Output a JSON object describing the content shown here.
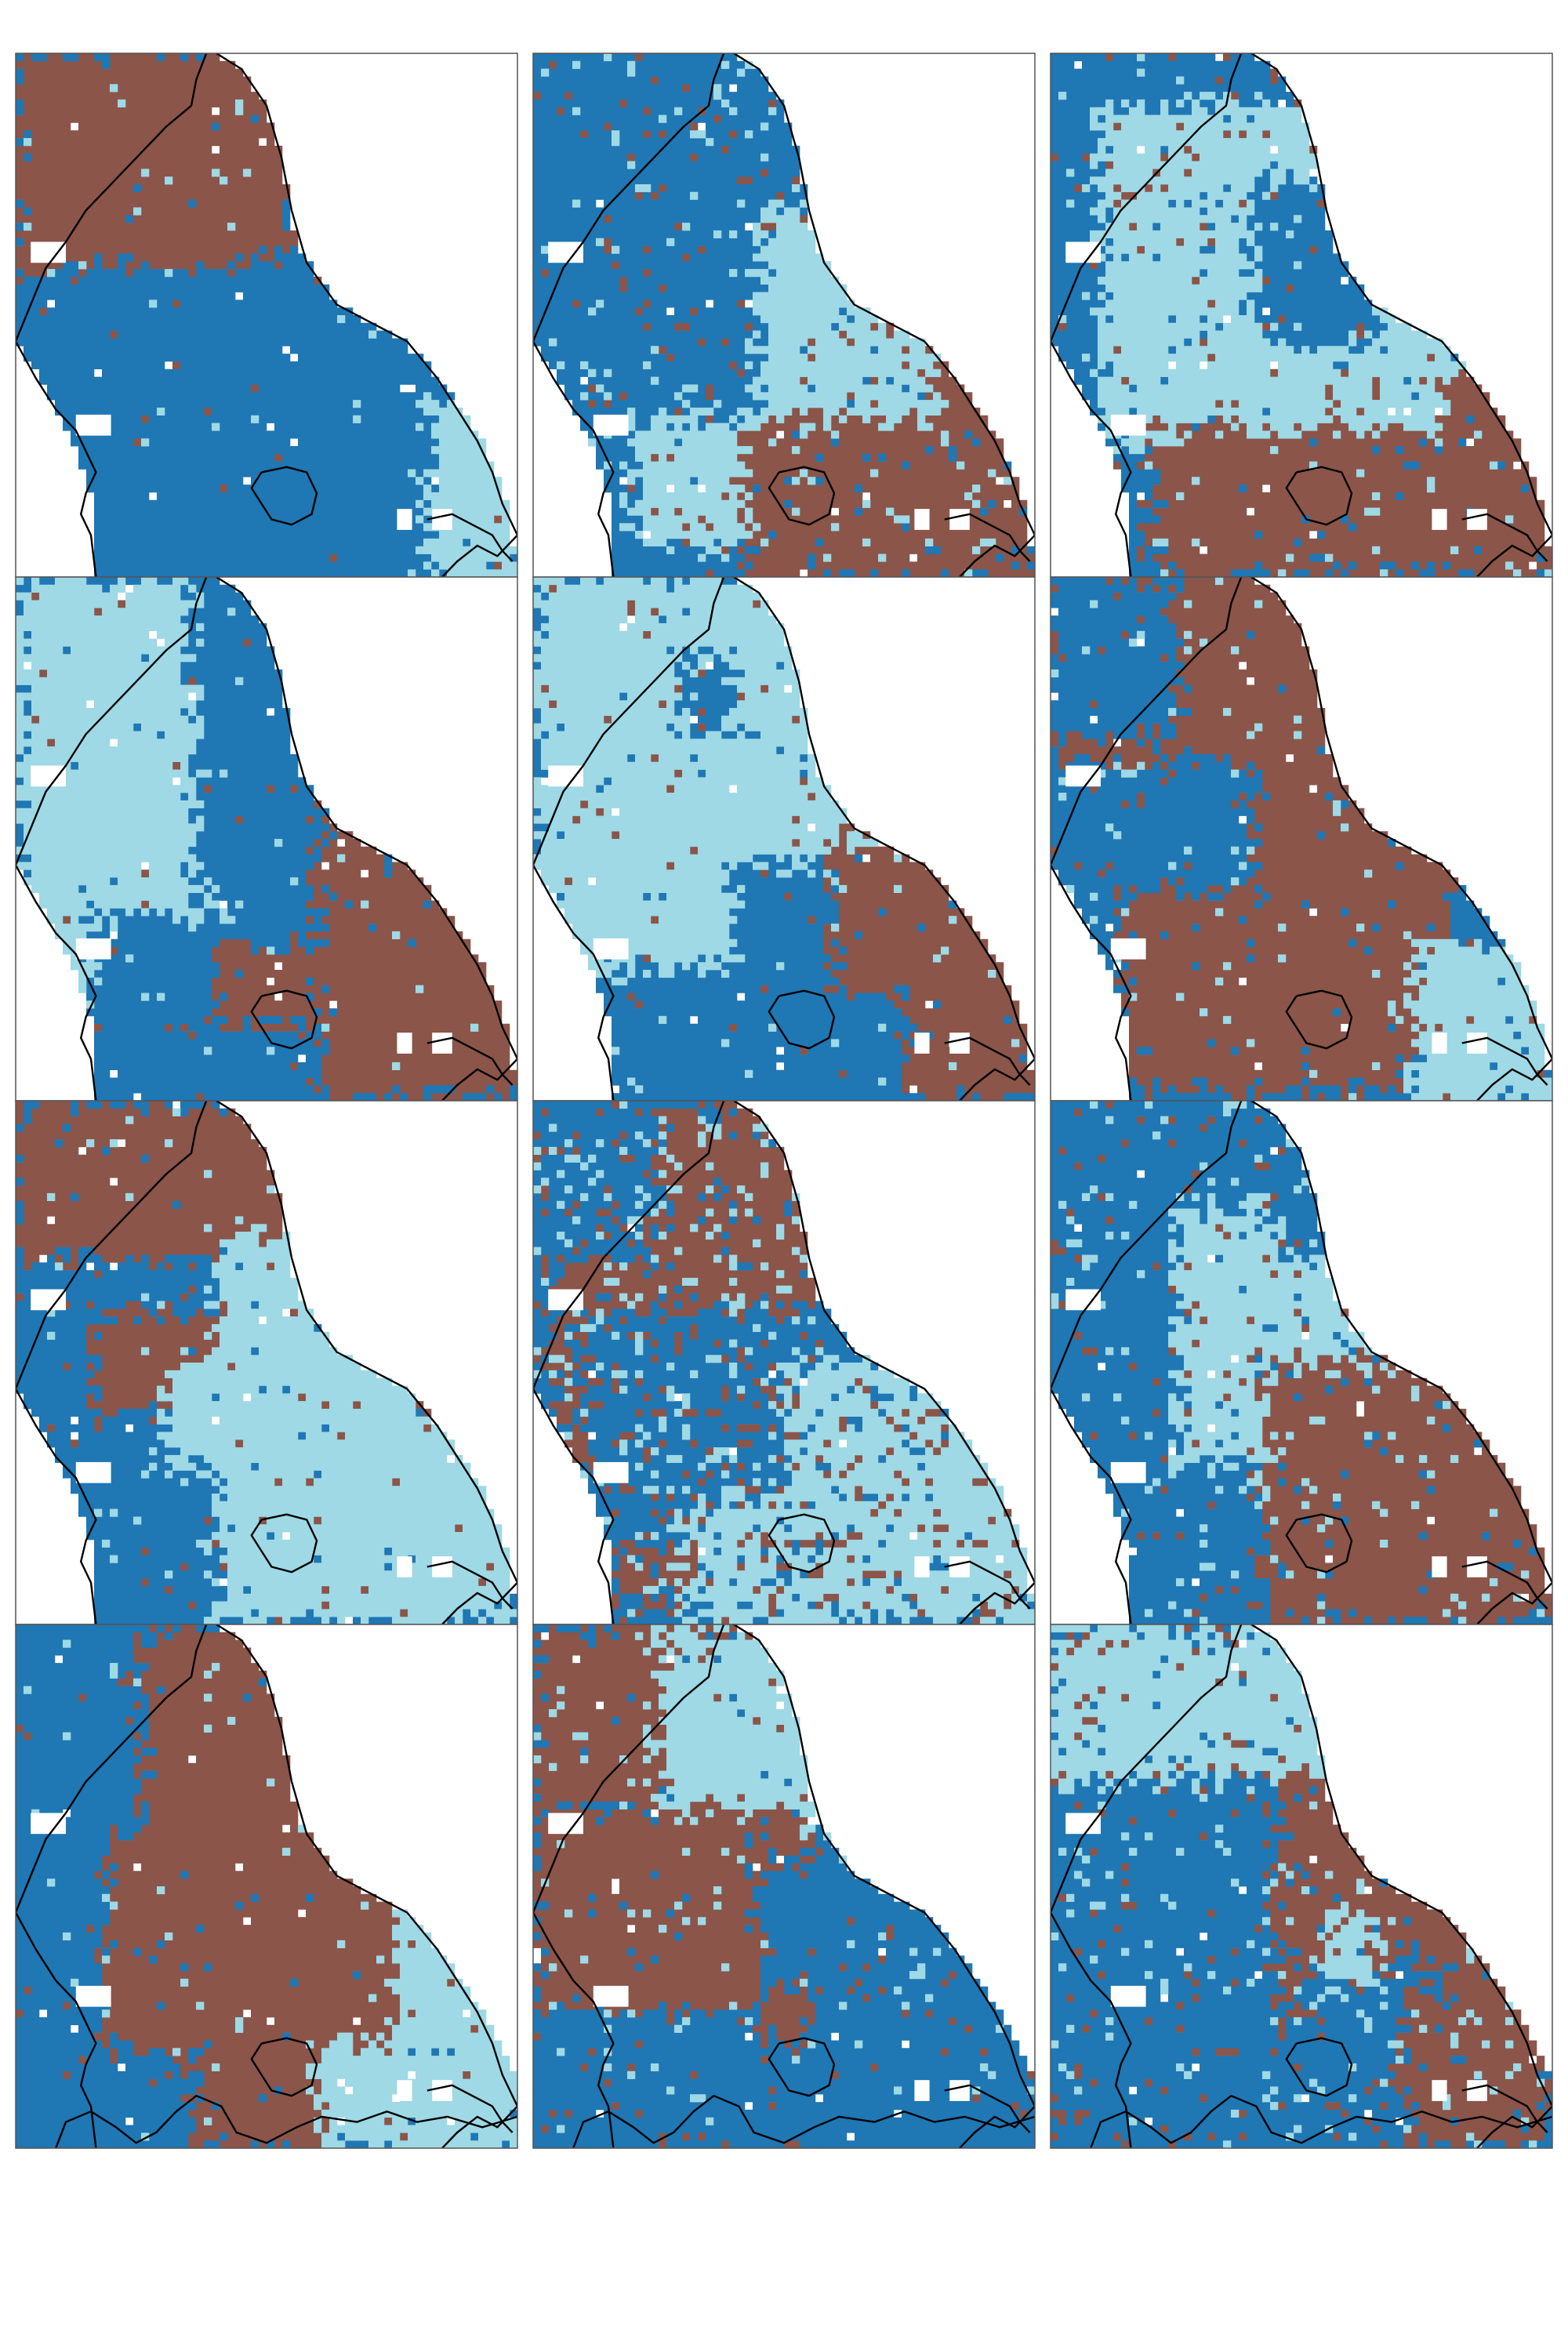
{
  "figure": {
    "layout": {
      "rows": 4,
      "cols": 3
    },
    "colors": {
      "brown": "#8b5549",
      "blue": "#1f77b4",
      "light_blue": "#9ed9e5",
      "background": "#ffffff",
      "frame": "#555555",
      "outline": "#000000"
    },
    "legend": [],
    "panels": [
      {
        "id": "r1c1",
        "row": 1,
        "col": 1,
        "regions": [
          [
            "B",
            0.0,
            0.0,
            0.52,
            0.42
          ],
          [
            "B",
            0.35,
            0.0,
            0.55,
            0.55
          ],
          [
            "D",
            0.08,
            0.4,
            0.95,
            1.0
          ],
          [
            "D",
            0.45,
            0.55,
            1.0,
            1.0
          ],
          [
            "L",
            0.82,
            0.66,
            1.0,
            1.0
          ]
        ],
        "fragment": 0.03
      },
      {
        "id": "r1c2",
        "row": 1,
        "col": 2,
        "regions": [
          [
            "D",
            0.0,
            0.0,
            0.65,
            1.0
          ],
          [
            "D",
            0.0,
            0.0,
            0.55,
            0.7
          ],
          [
            "L",
            0.45,
            0.3,
            1.0,
            0.8
          ],
          [
            "L",
            0.2,
            0.7,
            0.85,
            0.95
          ],
          [
            "B",
            0.42,
            0.7,
            1.0,
            1.0
          ],
          [
            "B",
            0.8,
            0.55,
            1.0,
            0.8
          ]
        ],
        "fragment": 0.12
      },
      {
        "id": "r1c3",
        "row": 1,
        "col": 3,
        "regions": [
          [
            "D",
            0.0,
            0.0,
            0.75,
            0.55
          ],
          [
            "L",
            0.1,
            0.1,
            0.6,
            0.75
          ],
          [
            "L",
            0.55,
            0.1,
            1.0,
            0.75
          ],
          [
            "D",
            0.4,
            0.25,
            0.65,
            0.55
          ],
          [
            "B",
            0.2,
            0.72,
            1.0,
            1.0
          ],
          [
            "B",
            0.78,
            0.6,
            1.0,
            1.0
          ]
        ],
        "fragment": 0.1
      },
      {
        "id": "r2c1",
        "row": 2,
        "col": 1,
        "regions": [
          [
            "L",
            0.0,
            0.0,
            0.45,
            0.8
          ],
          [
            "D",
            0.35,
            0.0,
            0.6,
            0.6
          ],
          [
            "D",
            0.45,
            0.3,
            0.7,
            0.7
          ],
          [
            "D",
            0.15,
            0.65,
            0.6,
            1.0
          ],
          [
            "B",
            0.6,
            0.45,
            1.0,
            1.0
          ],
          [
            "B",
            0.4,
            0.7,
            0.6,
            0.85
          ]
        ],
        "fragment": 0.05
      },
      {
        "id": "r2c2",
        "row": 2,
        "col": 2,
        "regions": [
          [
            "L",
            0.0,
            0.0,
            0.8,
            0.75
          ],
          [
            "D",
            0.3,
            0.15,
            0.4,
            0.3
          ],
          [
            "D",
            0.4,
            0.55,
            0.78,
            0.9
          ],
          [
            "D",
            0.15,
            0.75,
            0.75,
            1.0
          ],
          [
            "B",
            0.6,
            0.5,
            0.85,
            0.8
          ],
          [
            "B",
            0.75,
            0.6,
            1.0,
            1.0
          ]
        ],
        "fragment": 0.06
      },
      {
        "id": "r2c3",
        "row": 2,
        "col": 3,
        "regions": [
          [
            "B",
            0.0,
            0.0,
            0.6,
            0.4
          ],
          [
            "B",
            0.25,
            0.0,
            0.8,
            0.9
          ],
          [
            "D",
            0.0,
            0.35,
            0.4,
            1.0
          ],
          [
            "D",
            0.0,
            0.0,
            0.25,
            0.3
          ],
          [
            "B",
            0.15,
            0.6,
            0.7,
            0.98
          ],
          [
            "L",
            0.72,
            0.7,
            1.0,
            1.0
          ]
        ],
        "fragment": 0.07
      },
      {
        "id": "r3c1",
        "row": 3,
        "col": 1,
        "regions": [
          [
            "B",
            0.0,
            0.0,
            0.55,
            0.38
          ],
          [
            "D",
            0.0,
            0.3,
            0.5,
            1.0
          ],
          [
            "B",
            0.15,
            0.4,
            0.5,
            0.6
          ],
          [
            "L",
            0.4,
            0.25,
            1.0,
            1.0
          ],
          [
            "L",
            0.3,
            0.5,
            0.5,
            0.7
          ]
        ],
        "fragment": 0.05
      },
      {
        "id": "r3c2",
        "row": 3,
        "col": 2,
        "regions": [
          [
            "D",
            0.0,
            0.0,
            0.6,
            0.35
          ],
          [
            "B",
            0.25,
            0.0,
            0.65,
            0.45
          ],
          [
            "B",
            0.05,
            0.3,
            0.85,
            0.95
          ],
          [
            "D",
            0.1,
            0.4,
            0.7,
            0.85
          ],
          [
            "L",
            0.5,
            0.5,
            1.0,
            1.0
          ],
          [
            "L",
            0.3,
            0.75,
            0.6,
            1.0
          ]
        ],
        "fragment": 0.3
      },
      {
        "id": "r3c3",
        "row": 3,
        "col": 3,
        "regions": [
          [
            "D",
            0.0,
            0.0,
            0.6,
            0.7
          ],
          [
            "L",
            0.25,
            0.2,
            0.5,
            0.8
          ],
          [
            "L",
            0.45,
            0.25,
            0.7,
            0.55
          ],
          [
            "D",
            0.45,
            0.0,
            0.75,
            0.3
          ],
          [
            "B",
            0.42,
            0.5,
            1.0,
            1.0
          ],
          [
            "D",
            0.1,
            0.7,
            0.4,
            1.0
          ]
        ],
        "fragment": 0.12
      },
      {
        "id": "r4c1",
        "row": 4,
        "col": 1,
        "regions": [
          [
            "D",
            0.0,
            0.0,
            0.4,
            0.85
          ],
          [
            "B",
            0.25,
            0.0,
            0.75,
            0.75
          ],
          [
            "B",
            0.18,
            0.4,
            0.8,
            0.85
          ],
          [
            "L",
            0.75,
            0.55,
            1.0,
            1.0
          ],
          [
            "L",
            0.55,
            0.8,
            1.0,
            1.0
          ],
          [
            "D",
            0.0,
            0.82,
            0.55,
            1.0
          ],
          [
            "B",
            0.35,
            0.75,
            0.6,
            1.0
          ]
        ],
        "fragment": 0.04
      },
      {
        "id": "r4c2",
        "row": 4,
        "col": 2,
        "regions": [
          [
            "B",
            0.0,
            0.0,
            0.45,
            0.35
          ],
          [
            "L",
            0.25,
            0.0,
            0.7,
            0.4
          ],
          [
            "B",
            0.0,
            0.35,
            0.55,
            0.75
          ],
          [
            "D",
            0.45,
            0.45,
            1.0,
            1.0
          ],
          [
            "D",
            0.0,
            0.75,
            0.6,
            1.0
          ],
          [
            "B",
            0.45,
            0.7,
            0.55,
            0.8
          ]
        ],
        "fragment": 0.08
      },
      {
        "id": "r4c3",
        "row": 4,
        "col": 3,
        "regions": [
          [
            "L",
            0.0,
            0.0,
            0.6,
            0.4
          ],
          [
            "L",
            0.4,
            0.0,
            0.75,
            0.35
          ],
          [
            "D",
            0.0,
            0.3,
            0.5,
            1.0
          ],
          [
            "B",
            0.45,
            0.28,
            1.0,
            0.75
          ],
          [
            "D",
            0.5,
            0.65,
            0.8,
            1.0
          ],
          [
            "B",
            0.7,
            0.7,
            1.0,
            1.0
          ],
          [
            "L",
            0.55,
            0.55,
            0.65,
            0.7
          ]
        ],
        "fragment": 0.15
      }
    ]
  }
}
